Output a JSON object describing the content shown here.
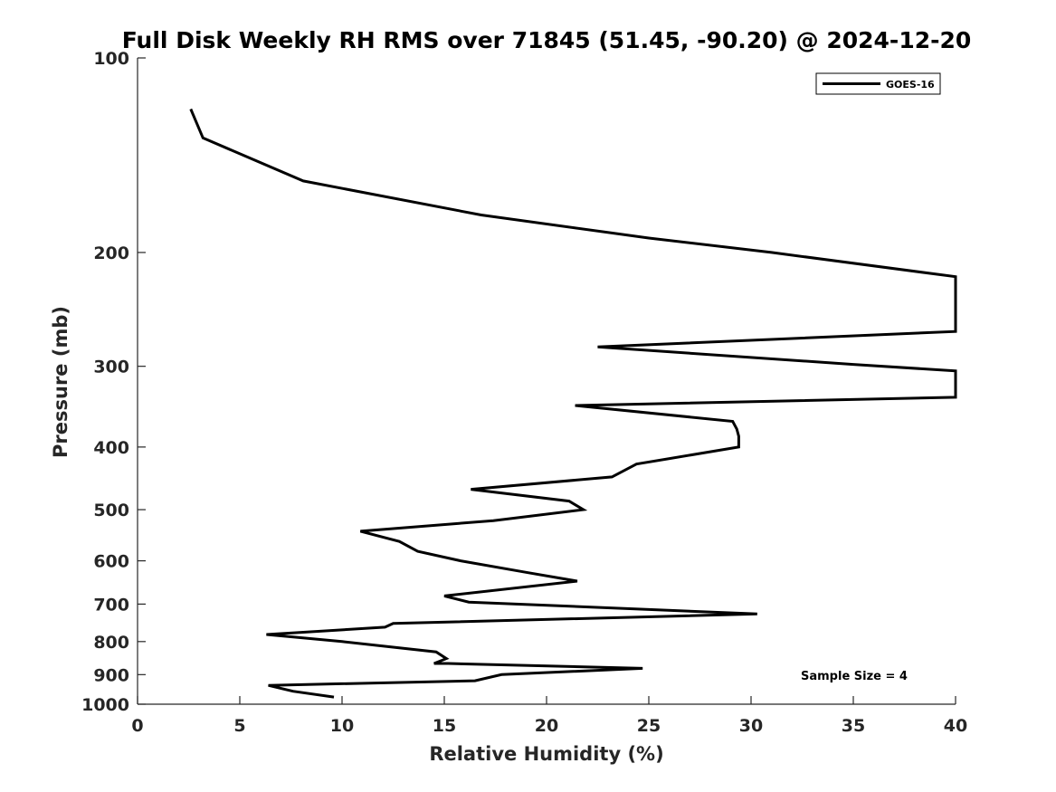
{
  "chart_data": {
    "type": "line",
    "title": "Full Disk Weekly RH RMS over 71845 (51.45, -90.20) @ 2024-12-20",
    "xlabel": "Relative Humidity (%)",
    "ylabel": "Pressure (mb)",
    "xlim": [
      0,
      40
    ],
    "ylim": [
      100,
      1000
    ],
    "y_scale": "log",
    "y_reversed": true,
    "grid": false,
    "legend_position": "top-right",
    "x_ticks": [
      0,
      5,
      10,
      15,
      20,
      25,
      30,
      35,
      40
    ],
    "y_ticks": [
      100,
      200,
      300,
      400,
      500,
      600,
      700,
      800,
      900,
      1000
    ],
    "annotation": "Sample Size = 4",
    "series": [
      {
        "name": "GOES-16",
        "color": "#000000",
        "points": [
          [
            9.6,
            975
          ],
          [
            7.6,
            955
          ],
          [
            6.4,
            935
          ],
          [
            16.5,
            920
          ],
          [
            17.8,
            900
          ],
          [
            24.7,
            880
          ],
          [
            15.2,
            865
          ],
          [
            14.5,
            865
          ],
          [
            15.1,
            850
          ],
          [
            14.6,
            830
          ],
          [
            10.0,
            800
          ],
          [
            6.3,
            780
          ],
          [
            12.1,
            760
          ],
          [
            12.5,
            750
          ],
          [
            30.3,
            725
          ],
          [
            16.2,
            695
          ],
          [
            15.0,
            680
          ],
          [
            21.5,
            645
          ],
          [
            19.0,
            625
          ],
          [
            15.8,
            600
          ],
          [
            13.7,
            580
          ],
          [
            12.8,
            560
          ],
          [
            10.9,
            540
          ],
          [
            17.4,
            520
          ],
          [
            21.8,
            500
          ],
          [
            21.1,
            485
          ],
          [
            16.3,
            465
          ],
          [
            23.2,
            445
          ],
          [
            24.4,
            425
          ],
          [
            29.4,
            400
          ],
          [
            29.4,
            385
          ],
          [
            29.3,
            375
          ],
          [
            29.1,
            365
          ],
          [
            21.4,
            345
          ],
          [
            40.0,
            335
          ],
          [
            40.0,
            305
          ],
          [
            35.0,
            298
          ],
          [
            22.5,
            280
          ],
          [
            40.0,
            265
          ],
          [
            40.0,
            218
          ],
          [
            31.0,
            200
          ],
          [
            25.0,
            190
          ],
          [
            16.8,
            175
          ],
          [
            8.1,
            155
          ],
          [
            3.2,
            133
          ],
          [
            2.6,
            120
          ]
        ]
      }
    ]
  }
}
